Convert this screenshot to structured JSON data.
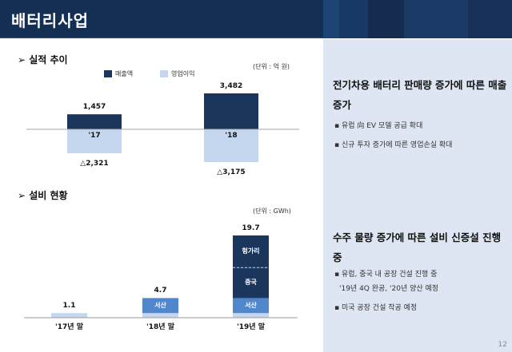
{
  "header": {
    "title": "배터리사업"
  },
  "colors": {
    "header": "#142f54",
    "panel": "#dde6f2",
    "revenue": "#1b365d",
    "profit": "#c5d6ef",
    "seosan": "#4f86cc",
    "base": "#c5d6ef",
    "overseas": "#1b365d"
  },
  "perf": {
    "title": "실적 추이",
    "unit": "(단위 : 억 원)",
    "legend": [
      "매출액",
      "영업이익"
    ],
    "chart_data": {
      "type": "bar",
      "categories": [
        "'17",
        "'18"
      ],
      "series": [
        {
          "name": "매출액",
          "values": [
            1457,
            3482
          ]
        },
        {
          "name": "영업이익",
          "values": [
            -2321,
            -3175
          ]
        }
      ],
      "labels_revenue": [
        "1,457",
        "3,482"
      ],
      "labels_profit": [
        "△2,321",
        "△3,175"
      ]
    }
  },
  "capa": {
    "title": "설비 현황",
    "unit": "(단위 : GWh)",
    "chart_data": {
      "type": "bar",
      "stacked": true,
      "categories": [
        "'17년 말",
        "'18년 말",
        "'19년 말"
      ],
      "totals": [
        1.1,
        4.7,
        19.7
      ],
      "total_labels": [
        "1.1",
        "4.7",
        "19.7"
      ],
      "segments": [
        {
          "name": "",
          "values": [
            1.1,
            1.1,
            1.1
          ]
        },
        {
          "name": "서산",
          "values": [
            0,
            3.6,
            3.6
          ]
        },
        {
          "name": "중국",
          "values": [
            0,
            0,
            7.3
          ]
        },
        {
          "name": "헝가리",
          "values": [
            0,
            0,
            7.7
          ]
        }
      ]
    }
  },
  "panel": {
    "heading1": "전기차용 배터리 판매량 증가에 따른 매출 증가",
    "bullets1": [
      "▪ 유럽 向 EV 모델 공급 확대",
      "▪ 신규 투자 증가에 따른 영업손실 확대"
    ],
    "heading2": "수주 물량 증가에 따른 설비 신증설 진행 중",
    "bullets2": [
      "▪ 유럽, 중국 내 공장 건설 진행 중",
      "'19년 4Q 완공, '20년 양산 예정",
      "▪ 미국 공장 건설 착공 예정"
    ],
    "page": "12"
  }
}
